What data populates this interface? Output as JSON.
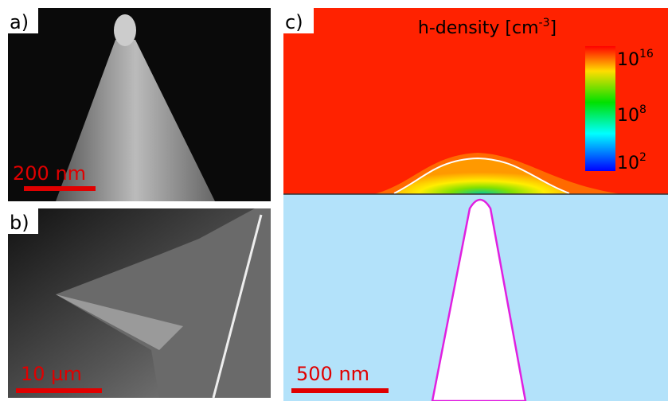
{
  "panels": {
    "a": {
      "label": "a)",
      "scale_bar": "200 nm"
    },
    "b": {
      "label": "b)",
      "scale_bar": "10 µm"
    },
    "c": {
      "label": "c)",
      "scale_bar": "500 nm",
      "title": {
        "base": "h-density [cm",
        "sup": "-3",
        "end": "]"
      },
      "colorbar": [
        {
          "base": "10",
          "exp": "16"
        },
        {
          "base": "10",
          "exp": "8"
        },
        {
          "base": "10",
          "exp": "2"
        }
      ]
    }
  }
}
